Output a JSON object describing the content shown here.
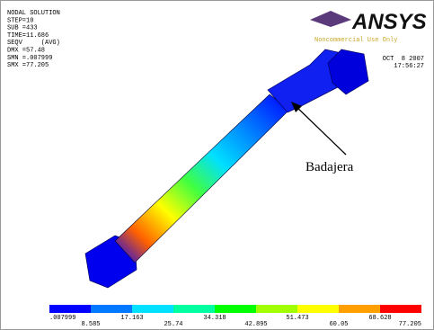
{
  "header": {
    "lines": [
      "NODAL SOLUTION",
      "STEP=10",
      "SUB =433",
      "TIME=11.686",
      "SEQV     (AVG)",
      "DMX =57.48",
      "SMN =.007999",
      "SMX =77.205"
    ]
  },
  "logo": {
    "name": "ANSYS",
    "note": "Noncommercial Use Only"
  },
  "timestamp": {
    "date": "OCT  8 2007",
    "time": "17:56:27"
  },
  "annotation": "Badajera",
  "legend": {
    "labels": [
      ".007999",
      "8.585",
      "17.163",
      "25.74",
      "34.318",
      "42.895",
      "51.473",
      "60.05",
      "68.628",
      "77.205"
    ],
    "colors": [
      "#0000ff",
      "#0078ff",
      "#00e0ff",
      "#00ffa0",
      "#00ff00",
      "#a0ff00",
      "#ffff00",
      "#ffa000",
      "#ff0000"
    ]
  }
}
